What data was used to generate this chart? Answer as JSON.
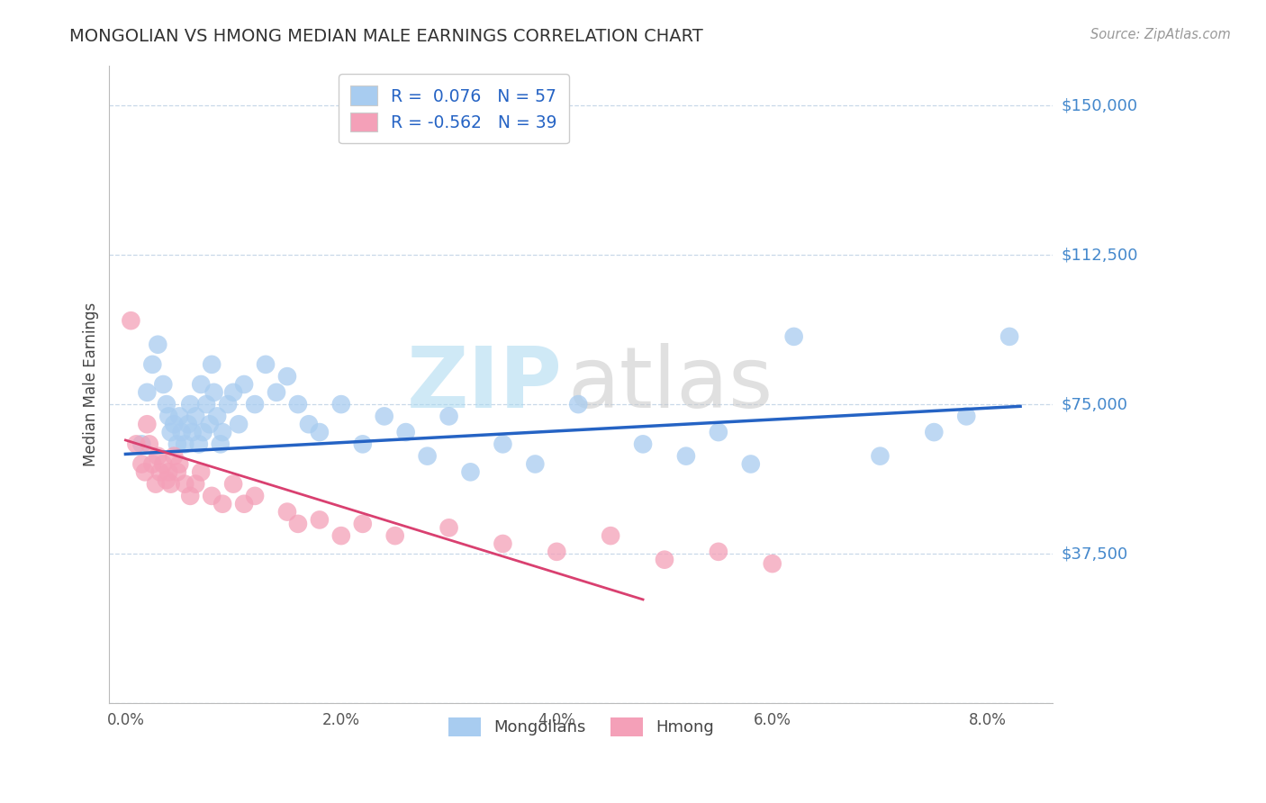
{
  "title": "MONGOLIAN VS HMONG MEDIAN MALE EARNINGS CORRELATION CHART",
  "source": "Source: ZipAtlas.com",
  "xlabel_vals": [
    0.0,
    2.0,
    4.0,
    6.0,
    8.0
  ],
  "ylabel": "Median Male Earnings",
  "yticks": [
    0,
    37500,
    75000,
    112500,
    150000
  ],
  "ytick_labels": [
    "",
    "$37,500",
    "$75,000",
    "$112,500",
    "$150,000"
  ],
  "ymin": 0,
  "ymax": 160000,
  "xmin": -0.15,
  "xmax": 8.6,
  "mongolian_R": "0.076",
  "mongolian_N": "57",
  "hmong_R": "-0.562",
  "hmong_N": "39",
  "mongolian_color": "#A8CCF0",
  "hmong_color": "#F4A0B8",
  "mongolian_line_color": "#2563C4",
  "hmong_line_color": "#D94070",
  "legend_text_color": "#2563C4",
  "background_color": "#ffffff",
  "watermark_zip_color": "#A8D8F0",
  "watermark_atlas_color": "#C8C8C8",
  "mon_trend_x": [
    0.0,
    8.3
  ],
  "mon_trend_y": [
    62500,
    74500
  ],
  "hmo_trend_x": [
    0.0,
    4.8
  ],
  "hmo_trend_y": [
    66000,
    26000
  ],
  "mongolian_x": [
    0.15,
    0.2,
    0.25,
    0.3,
    0.35,
    0.38,
    0.4,
    0.42,
    0.45,
    0.48,
    0.5,
    0.52,
    0.55,
    0.58,
    0.6,
    0.62,
    0.65,
    0.68,
    0.7,
    0.72,
    0.75,
    0.78,
    0.8,
    0.82,
    0.85,
    0.88,
    0.9,
    0.95,
    1.0,
    1.05,
    1.1,
    1.2,
    1.3,
    1.4,
    1.5,
    1.6,
    1.7,
    1.8,
    2.0,
    2.2,
    2.4,
    2.6,
    2.8,
    3.0,
    3.2,
    3.5,
    3.8,
    4.2,
    4.8,
    5.2,
    5.5,
    5.8,
    6.2,
    7.0,
    7.5,
    7.8,
    8.2
  ],
  "mongolian_y": [
    65000,
    78000,
    85000,
    90000,
    80000,
    75000,
    72000,
    68000,
    70000,
    65000,
    72000,
    68000,
    65000,
    70000,
    75000,
    68000,
    72000,
    65000,
    80000,
    68000,
    75000,
    70000,
    85000,
    78000,
    72000,
    65000,
    68000,
    75000,
    78000,
    70000,
    80000,
    75000,
    85000,
    78000,
    82000,
    75000,
    70000,
    68000,
    75000,
    65000,
    72000,
    68000,
    62000,
    72000,
    58000,
    65000,
    60000,
    75000,
    65000,
    62000,
    68000,
    60000,
    92000,
    62000,
    68000,
    72000,
    92000
  ],
  "hmong_x": [
    0.05,
    0.1,
    0.15,
    0.18,
    0.2,
    0.22,
    0.25,
    0.28,
    0.3,
    0.32,
    0.35,
    0.38,
    0.4,
    0.42,
    0.45,
    0.48,
    0.5,
    0.55,
    0.6,
    0.65,
    0.7,
    0.8,
    0.9,
    1.0,
    1.1,
    1.2,
    1.5,
    1.6,
    1.8,
    2.0,
    2.2,
    2.5,
    3.0,
    3.5,
    4.0,
    4.5,
    5.0,
    5.5,
    6.0
  ],
  "hmong_y": [
    96000,
    65000,
    60000,
    58000,
    70000,
    65000,
    60000,
    55000,
    62000,
    58000,
    60000,
    56000,
    58000,
    55000,
    62000,
    58000,
    60000,
    55000,
    52000,
    55000,
    58000,
    52000,
    50000,
    55000,
    50000,
    52000,
    48000,
    45000,
    46000,
    42000,
    45000,
    42000,
    44000,
    40000,
    38000,
    42000,
    36000,
    38000,
    35000
  ]
}
